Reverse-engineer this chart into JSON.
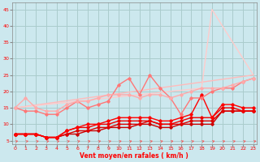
{
  "xlabel": "Vent moyen/en rafales ( km/h )",
  "bg_color": "#cce8ee",
  "grid_color": "#aacccc",
  "x_ticks": [
    0,
    1,
    2,
    3,
    4,
    5,
    6,
    7,
    8,
    9,
    10,
    11,
    12,
    13,
    14,
    15,
    16,
    17,
    18,
    19,
    20,
    21,
    22,
    23
  ],
  "y_ticks": [
    5,
    10,
    15,
    20,
    25,
    30,
    35,
    40,
    45
  ],
  "xlim": [
    -0.3,
    23.3
  ],
  "ylim": [
    4.0,
    47.0
  ],
  "lines": [
    {
      "x": [
        0,
        1,
        2,
        3,
        4,
        5,
        6,
        7,
        8,
        9,
        10,
        11,
        12,
        13,
        14,
        15,
        16,
        17,
        18,
        19,
        20,
        21,
        22,
        23
      ],
      "y": [
        7,
        7,
        7,
        6,
        6,
        7,
        7,
        8,
        8,
        9,
        9,
        9,
        10,
        10,
        9,
        9,
        10,
        10,
        10,
        10,
        14,
        14,
        14,
        14
      ],
      "color": "#cc0000",
      "lw": 1.0,
      "marker": "D",
      "ms": 1.8
    },
    {
      "x": [
        0,
        1,
        2,
        3,
        4,
        5,
        6,
        7,
        8,
        9,
        10,
        11,
        12,
        13,
        14,
        15,
        16,
        17,
        18,
        19,
        20,
        21,
        22,
        23
      ],
      "y": [
        7,
        7,
        7,
        6,
        6,
        7,
        8,
        8,
        9,
        9,
        10,
        10,
        10,
        11,
        10,
        10,
        10,
        11,
        11,
        11,
        14,
        14,
        14,
        14
      ],
      "color": "#dd0000",
      "lw": 1.0,
      "marker": "D",
      "ms": 1.8
    },
    {
      "x": [
        0,
        1,
        2,
        3,
        4,
        5,
        6,
        7,
        8,
        9,
        10,
        11,
        12,
        13,
        14,
        15,
        16,
        17,
        18,
        19,
        20,
        21,
        22,
        23
      ],
      "y": [
        7,
        7,
        7,
        6,
        6,
        8,
        9,
        9,
        10,
        10,
        11,
        11,
        11,
        11,
        10,
        10,
        11,
        12,
        12,
        12,
        15,
        15,
        14,
        14
      ],
      "color": "#ee0000",
      "lw": 1.0,
      "marker": "D",
      "ms": 1.8
    },
    {
      "x": [
        0,
        1,
        2,
        3,
        4,
        5,
        6,
        7,
        8,
        9,
        10,
        11,
        12,
        13,
        14,
        15,
        16,
        17,
        18,
        19,
        20,
        21,
        22,
        23
      ],
      "y": [
        7,
        7,
        7,
        6,
        6,
        8,
        9,
        10,
        10,
        11,
        12,
        12,
        12,
        12,
        11,
        11,
        12,
        13,
        19,
        12,
        16,
        16,
        15,
        15
      ],
      "color": "#ff0000",
      "lw": 1.0,
      "marker": "D",
      "ms": 1.8
    },
    {
      "x": [
        0,
        1,
        2,
        3,
        4,
        5,
        6,
        7,
        8,
        9,
        10,
        11,
        12,
        13,
        14,
        15,
        16,
        17,
        18,
        19,
        20,
        21,
        22,
        23
      ],
      "y": [
        15,
        14,
        14,
        13,
        13,
        15,
        17,
        15,
        16,
        17,
        22,
        24,
        19,
        25,
        21,
        18,
        13,
        18,
        18,
        20,
        21,
        21,
        23,
        24
      ],
      "color": "#ff7777",
      "lw": 1.0,
      "marker": "D",
      "ms": 1.8
    },
    {
      "x": [
        0,
        1,
        2,
        3,
        4,
        5,
        6,
        7,
        8,
        9,
        10,
        11,
        12,
        13,
        14,
        15,
        16,
        17,
        18,
        19,
        20,
        21,
        22,
        23
      ],
      "y": [
        15,
        18,
        15,
        14,
        14,
        16,
        17,
        17,
        18,
        19,
        19,
        19,
        18,
        19,
        19,
        18,
        19,
        20,
        21,
        21,
        21,
        22,
        23,
        24
      ],
      "color": "#ffaaaa",
      "lw": 1.0,
      "marker": "D",
      "ms": 1.8
    },
    {
      "x": [
        0,
        23
      ],
      "y": [
        15,
        25
      ],
      "color": "#ffbbbb",
      "lw": 1.0,
      "marker": null,
      "ms": 0
    },
    {
      "x": [
        0,
        18,
        19,
        23
      ],
      "y": [
        15,
        21,
        45,
        25
      ],
      "color": "#ffcccc",
      "lw": 1.0,
      "marker": null,
      "ms": 0
    }
  ]
}
